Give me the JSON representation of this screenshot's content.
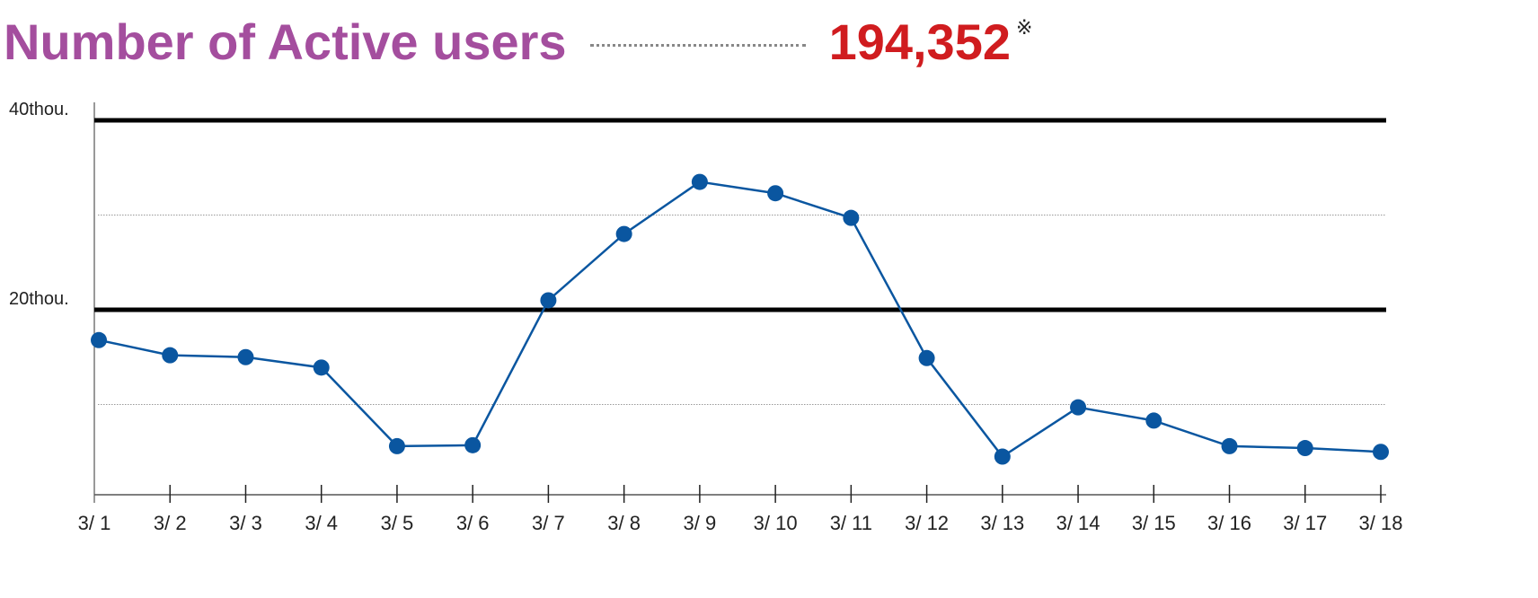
{
  "header": {
    "title": "Number of Active users",
    "total": "194,352",
    "note_mark": "※",
    "title_color": "#a44e9e",
    "total_color": "#d01c1f"
  },
  "chart_data": {
    "type": "line",
    "title": "",
    "xlabel": "",
    "ylabel": "",
    "categories": [
      "3/ 1",
      "3/ 2",
      "3/ 3",
      "3/ 4",
      "3/ 5",
      "3/ 6",
      "3/ 7",
      "3/ 8",
      "3/ 9",
      "3/ 10",
      "3/ 11",
      "3/ 12",
      "3/ 13",
      "3/ 14",
      "3/ 15",
      "3/ 16",
      "3/ 17",
      "3/ 18"
    ],
    "values": [
      16800,
      15200,
      15000,
      13900,
      5600,
      5700,
      21000,
      28000,
      33500,
      32300,
      29700,
      14900,
      4500,
      9700,
      8300,
      5600,
      5400,
      5000
    ],
    "ylim": [
      0,
      40000
    ],
    "yticks": [
      {
        "value": 20000,
        "label": "20thou."
      },
      {
        "value": 40000,
        "label": "40thou."
      }
    ],
    "minor_grid": [
      10000,
      30000
    ],
    "grid": true,
    "line_color": "#0a56a0"
  }
}
